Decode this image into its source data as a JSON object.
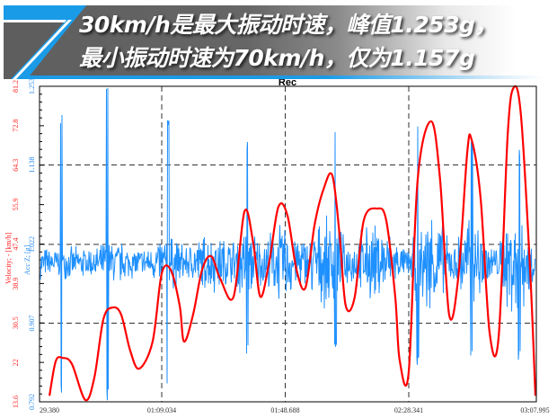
{
  "banner": {
    "line1": "30km/h是最大振动时速，峰值1.253g，",
    "line2": "最小振动时速为70km/h，仅为1.157g"
  },
  "chart_data": {
    "type": "line",
    "title": "Rec",
    "xlabel": "",
    "x_tick_labels": [
      "29.380",
      "01:09.034",
      "01:48.688",
      "02:28.341",
      "03:07.995"
    ],
    "x_tick_seconds": [
      29.38,
      69.034,
      108.688,
      148.341,
      187.995
    ],
    "xlim": [
      29.8,
      189.3
    ],
    "grid": "dashed",
    "series": [
      {
        "name": "Velocity; - [km/h]",
        "axis": "left",
        "color": "#ff0000",
        "ylim": [
          13.6,
          81.2
        ],
        "y_tick_labels": [
          "13.6",
          "22",
          "30.5",
          "38.9",
          "47.4",
          "55.9",
          "64.3",
          "72.8",
          "81.2"
        ],
        "t": [
          33.0,
          35.0,
          37.3,
          40.2,
          44.5,
          47.4,
          50.3,
          53.2,
          56.0,
          58.9,
          61.8,
          66.1,
          69.0,
          71.9,
          74.8,
          76.2,
          79.1,
          82.0,
          84.9,
          87.8,
          92.1,
          95.6,
          98.4,
          100.7,
          103.6,
          106.5,
          109.4,
          112.3,
          115.2,
          118.1,
          121.0,
          123.8,
          126.1,
          128.1,
          131.0,
          133.9,
          138.2,
          141.1,
          144.0,
          145.4,
          148.3,
          151.2,
          155.5,
          158.4,
          161.3,
          164.2,
          167.1,
          168.5,
          171.4,
          174.3,
          177.2,
          180.1,
          182.1,
          184.4,
          187.3,
          189.0
        ],
        "values": [
          14.9,
          22.3,
          23.0,
          21.7,
          14.0,
          18.8,
          31.3,
          33.8,
          32.3,
          24.6,
          20.7,
          26.5,
          41.0,
          41.9,
          34.2,
          26.5,
          32.3,
          41.9,
          44.8,
          40.0,
          36.1,
          54.4,
          47.7,
          36.1,
          43.8,
          55.4,
          53.5,
          41.9,
          38.1,
          51.5,
          59.2,
          62.1,
          49.6,
          34.2,
          36.1,
          52.5,
          55.0,
          52.5,
          36.1,
          22.6,
          19.8,
          61.2,
          73.7,
          61.2,
          32.3,
          40.0,
          66.9,
          69.8,
          57.3,
          28.4,
          27.5,
          70.8,
          81.0,
          74.7,
          41.9,
          14.9
        ]
      },
      {
        "name": "Acc Z; [g]",
        "axis": "left-inner",
        "color": "#1e90ff",
        "ylim": [
          0.792,
          1.253
        ],
        "y_tick_labels": [
          "0.792",
          "0.907",
          "1.022",
          "1.138",
          "1.253"
        ],
        "baseline": 0.995,
        "spikes": [
          {
            "t": 36.8,
            "max": 1.211,
            "min": 0.8
          },
          {
            "t": 51.6,
            "max": 1.253,
            "min": 0.792
          },
          {
            "t": 71.0,
            "max": 1.208,
            "min": 0.8
          },
          {
            "t": 96.5,
            "max": 1.175,
            "min": 0.86
          },
          {
            "t": 124.8,
            "max": 1.19,
            "min": 0.87
          },
          {
            "t": 151.2,
            "max": 1.21,
            "min": 0.84
          },
          {
            "t": 168.5,
            "max": 1.175,
            "min": 0.85
          },
          {
            "t": 183.8,
            "max": 1.162,
            "min": 0.85
          }
        ]
      }
    ]
  }
}
